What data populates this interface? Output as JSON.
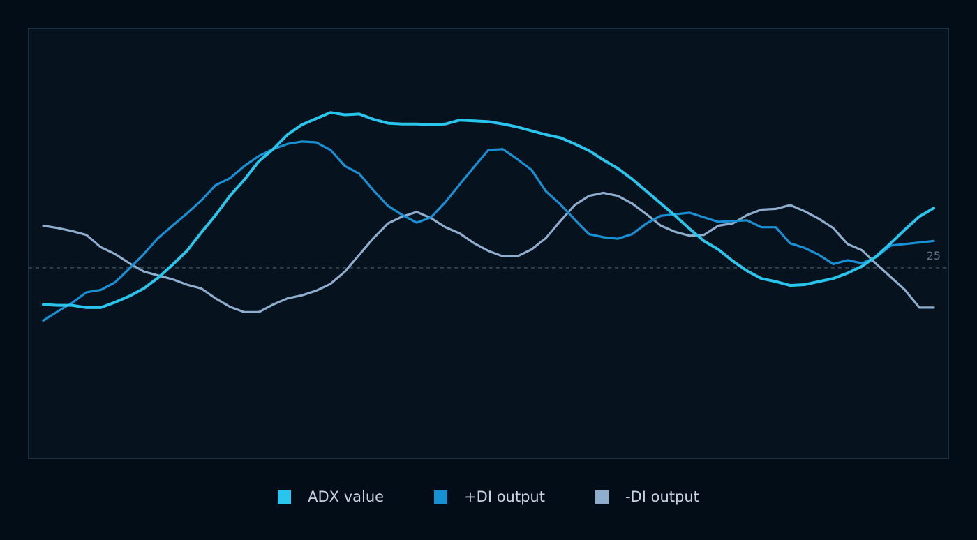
{
  "chart_data": {
    "type": "line",
    "title": "",
    "xlabel": "",
    "ylabel": "",
    "x": [
      0,
      1,
      2,
      3,
      4,
      5,
      6,
      7,
      8,
      9,
      10,
      11,
      12,
      13,
      14,
      15,
      16,
      17,
      18,
      19,
      20,
      21,
      22,
      23,
      24,
      25,
      26,
      27,
      28,
      29,
      30,
      31,
      32,
      33,
      34,
      35,
      36,
      37,
      38,
      39,
      40,
      41,
      42,
      43,
      44,
      45,
      46,
      47,
      48,
      49,
      50,
      51,
      52,
      53,
      54,
      55,
      56,
      57,
      58,
      59,
      60,
      61,
      62
    ],
    "ylim": [
      0,
      60
    ],
    "grid": false,
    "legend_position": "bottom",
    "reference_line": {
      "value": 25,
      "label": "25"
    },
    "series": [
      {
        "name": "ADX value",
        "color": "#29c5ec",
        "values": [
          20.2,
          20.1,
          20.1,
          19.8,
          19.8,
          20.5,
          21.3,
          22.3,
          23.7,
          25.4,
          27.2,
          29.6,
          31.9,
          34.4,
          36.5,
          38.9,
          40.5,
          42.4,
          43.7,
          44.5,
          45.3,
          45.0,
          45.1,
          44.4,
          43.9,
          43.8,
          43.8,
          43.7,
          43.8,
          44.3,
          44.2,
          44.1,
          43.8,
          43.4,
          42.9,
          42.4,
          42.0,
          41.2,
          40.3,
          39.1,
          38.0,
          36.6,
          35.0,
          33.4,
          31.8,
          30.1,
          28.5,
          27.4,
          25.9,
          24.6,
          23.6,
          23.2,
          22.7,
          22.8,
          23.2,
          23.6,
          24.3,
          25.2,
          26.5,
          28.2,
          30.0,
          31.7,
          32.8
        ]
      },
      {
        "name": "+DI output",
        "color": "#1891d4",
        "values": [
          18.1,
          19.3,
          20.4,
          21.8,
          22.1,
          23.1,
          24.9,
          26.8,
          28.9,
          30.5,
          32.1,
          33.8,
          35.8,
          36.7,
          38.3,
          39.6,
          40.5,
          41.2,
          41.5,
          41.4,
          40.4,
          38.3,
          37.3,
          35.1,
          33.1,
          31.9,
          30.9,
          31.6,
          33.6,
          35.9,
          38.2,
          40.4,
          40.5,
          39.2,
          37.8,
          35.0,
          33.3,
          31.3,
          29.4,
          29.0,
          28.8,
          29.4,
          30.8,
          31.8,
          32.0,
          32.2,
          31.6,
          31.0,
          31.1,
          31.2,
          30.3,
          30.3,
          28.2,
          27.6,
          26.7,
          25.5,
          26.0,
          25.6,
          26.4,
          27.9,
          28.1,
          28.3,
          28.5
        ]
      },
      {
        "name": "-DI output",
        "color": "#8fadcd",
        "values": [
          30.5,
          30.2,
          29.8,
          29.3,
          27.7,
          26.8,
          25.6,
          24.5,
          24.0,
          23.5,
          22.8,
          22.3,
          21.0,
          19.9,
          19.2,
          19.2,
          20.2,
          21.0,
          21.4,
          22.0,
          22.9,
          24.5,
          26.7,
          28.9,
          30.8,
          31.7,
          32.3,
          31.5,
          30.3,
          29.5,
          28.2,
          27.2,
          26.5,
          26.5,
          27.4,
          28.9,
          31.1,
          33.2,
          34.4,
          34.8,
          34.4,
          33.4,
          32.0,
          30.5,
          29.7,
          29.2,
          29.3,
          30.5,
          30.8,
          31.9,
          32.6,
          32.7,
          33.2,
          32.4,
          31.4,
          30.2,
          28.1,
          27.3,
          25.5,
          23.8,
          22.1,
          19.8,
          19.8
        ]
      }
    ]
  }
}
